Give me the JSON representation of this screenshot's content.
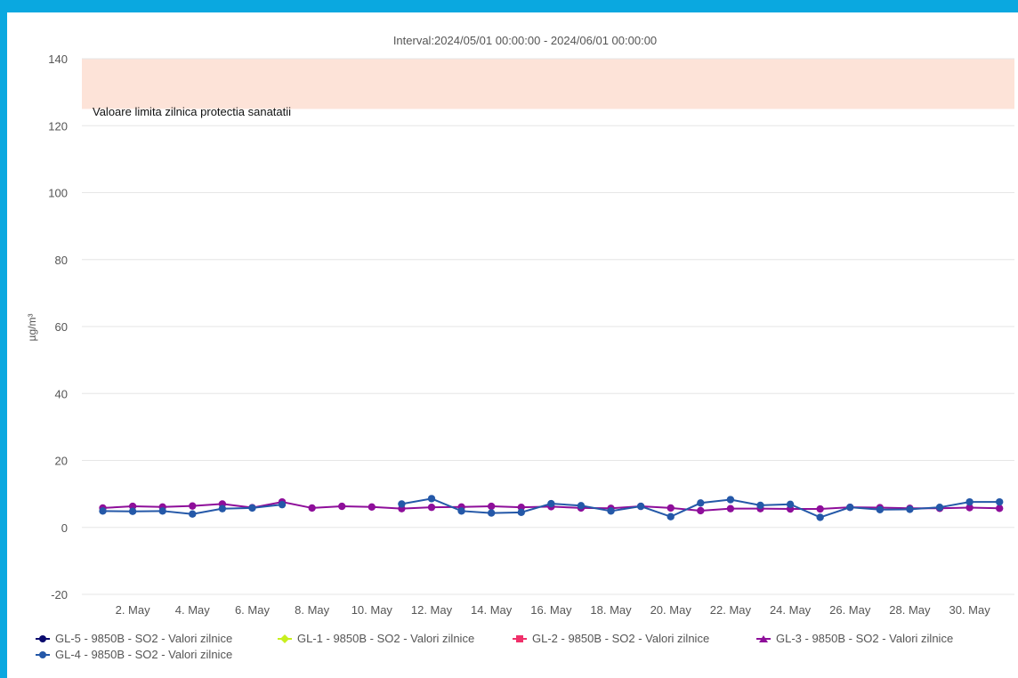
{
  "chart_data": {
    "type": "line",
    "title": "Interval:2024/05/01 00:00:00 - 2024/06/01 00:00:00",
    "ylabel": "µg/m³",
    "xlabel": "",
    "ylim": [
      -20,
      140
    ],
    "yticks": [
      -20,
      0,
      20,
      40,
      60,
      80,
      100,
      120,
      140
    ],
    "xlim": [
      1,
      31
    ],
    "xticks": [
      {
        "day": 2,
        "label": "2. May"
      },
      {
        "day": 4,
        "label": "4. May"
      },
      {
        "day": 6,
        "label": "6. May"
      },
      {
        "day": 8,
        "label": "8. May"
      },
      {
        "day": 10,
        "label": "10. May"
      },
      {
        "day": 12,
        "label": "12. May"
      },
      {
        "day": 14,
        "label": "14. May"
      },
      {
        "day": 16,
        "label": "16. May"
      },
      {
        "day": 18,
        "label": "18. May"
      },
      {
        "day": 20,
        "label": "20. May"
      },
      {
        "day": 22,
        "label": "22. May"
      },
      {
        "day": 24,
        "label": "24. May"
      },
      {
        "day": 26,
        "label": "26. May"
      },
      {
        "day": 28,
        "label": "28. May"
      },
      {
        "day": 30,
        "label": "30. May"
      }
    ],
    "grid": true,
    "plot_band": {
      "from": 125,
      "to": 140,
      "label": "Valoare limita zilnica protectia sanatatii",
      "color": "#fde3d8"
    },
    "series": [
      {
        "name": "GL-5 - 9850B - SO2 - Valori zilnice",
        "color": "#0a0a6e",
        "marker": "circle",
        "x": [],
        "values": []
      },
      {
        "name": "GL-1 - 9850B - SO2 - Valori zilnice",
        "color": "#c8ef1e",
        "marker": "diamond",
        "x": [],
        "values": []
      },
      {
        "name": "GL-2 - 9850B - SO2 - Valori zilnice",
        "color": "#f0306a",
        "marker": "square",
        "x": [],
        "values": []
      },
      {
        "name": "GL-3 - 9850B - SO2 - Valori zilnice",
        "color": "#8e0e9a",
        "marker": "triangle",
        "x": [
          1,
          2,
          3,
          4,
          5,
          6,
          7,
          8,
          9,
          10,
          11,
          12,
          13,
          14,
          15,
          16,
          17,
          18,
          19,
          20,
          21,
          22,
          23,
          24,
          25,
          26,
          27,
          28,
          29,
          30,
          31
        ],
        "values": [
          5.8,
          6.3,
          6.1,
          6.4,
          7.0,
          5.9,
          7.6,
          5.8,
          6.3,
          6.1,
          5.6,
          6.0,
          6.1,
          6.3,
          6.0,
          6.2,
          5.8,
          5.7,
          6.3,
          5.8,
          5.0,
          5.6,
          5.6,
          5.5,
          5.5,
          6.0,
          5.9,
          5.7,
          5.7,
          5.9,
          5.7
        ]
      },
      {
        "name": "GL-4 - 9850B - SO2 - Valori zilnice",
        "color": "#2458a8",
        "marker": "circle",
        "x": [
          1,
          2,
          3,
          4,
          5,
          6,
          7,
          11,
          12,
          13,
          14,
          15,
          16,
          17,
          18,
          19,
          20,
          21,
          22,
          23,
          24,
          25,
          26,
          27,
          28,
          29,
          30,
          31
        ],
        "values": [
          4.9,
          4.8,
          4.9,
          4.0,
          5.6,
          5.8,
          6.8,
          7.0,
          8.6,
          4.9,
          4.3,
          4.5,
          7.1,
          6.5,
          4.9,
          6.3,
          3.2,
          7.3,
          8.3,
          6.6,
          6.9,
          3.0,
          6.0,
          5.3,
          5.4,
          6.0,
          7.6,
          7.6
        ]
      }
    ]
  }
}
